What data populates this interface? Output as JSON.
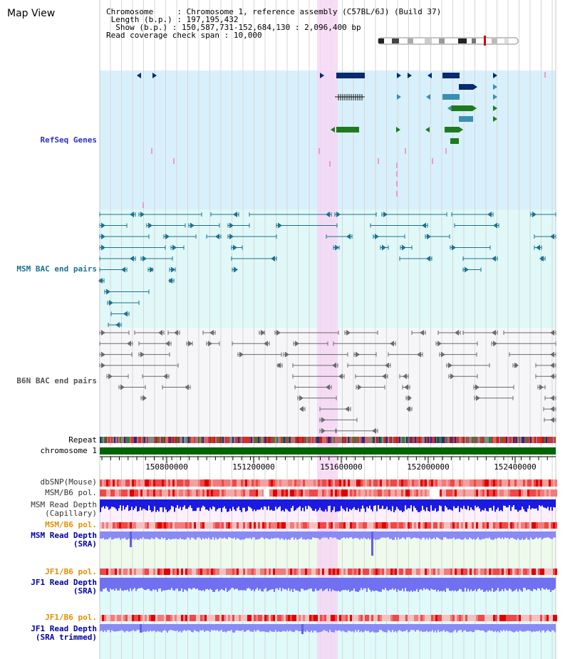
{
  "title": "Map View",
  "info": {
    "chromosome_label": "Chromosome",
    "chromosome_value": "Chromosome 1, reference assembly (C57BL/6J) (Build 37)",
    "length_label": "Length (b.p.)",
    "length_value": "197,195,432",
    "show_label": "Show (b.p.)",
    "show_value": "150,587,731-152,684,130 : 2,096,400 bp",
    "coverage_label": "Read coverage check span",
    "coverage_value": "10,000"
  },
  "tracks": {
    "refseq": "RefSeq Genes",
    "msm_bac": "MSM BAC end pairs",
    "b6n_bac": "B6N BAC end pairs",
    "repeat": "Repeat",
    "chromosome": "chromosome 1",
    "dbsnp": "dbSNP(Mouse)",
    "msm_pol": "MSM/B6 pol.",
    "msm_depth_cap_1": "MSM Read Depth",
    "msm_depth_cap_2": "(Capillary)",
    "msm_pol2": "MSM/B6 pol.",
    "msm_depth_sra_1": "MSM Read Depth",
    "msm_depth_sra_2": "(SRA)",
    "jf1_pol": "JF1/B6 pol.",
    "jf1_depth_1": "JF1 Read Depth",
    "jf1_depth_2": "(SRA)",
    "jf1_pol2": "JF1/B6 pol.",
    "jf1_trim_1": "JF1 Read Depth",
    "jf1_trim_2": "(SRA trimmed)"
  },
  "ruler": {
    "ticks": [
      "150800000",
      "151200000",
      "151600000",
      "152000000",
      "152400000"
    ]
  },
  "colors": {
    "refseq_bg": "#d8f0fb",
    "bac_msm_bg": "#e0f8f8",
    "b6n_bg": "#f5f5f8",
    "highlight": "#f4d8f4",
    "label_blue": "#3030c0",
    "label_teal": "#1c7090",
    "label_orange": "#e09000",
    "label_navy": "#0000a0",
    "chromosome_green": "#006400"
  }
}
